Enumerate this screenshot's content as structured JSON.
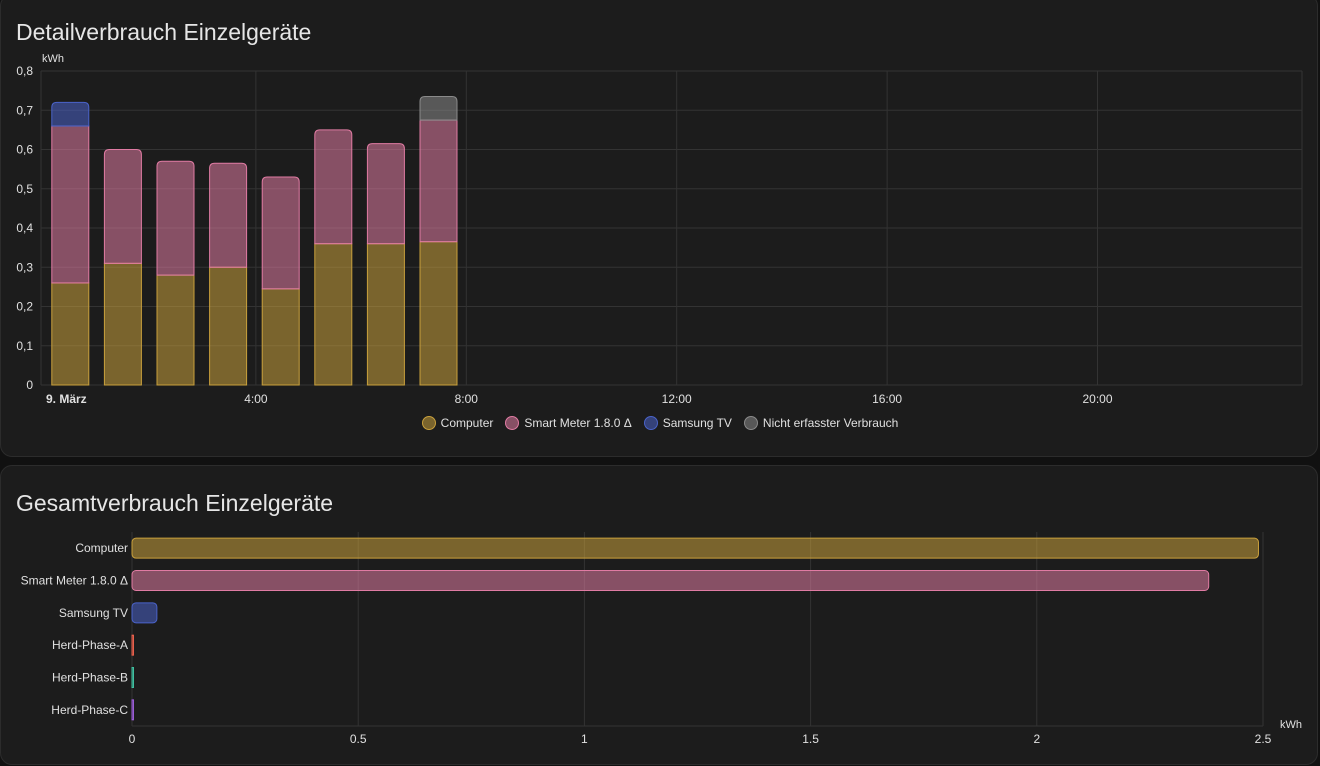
{
  "cards": [
    {
      "title": "Detailverbrauch Einzelgeräte",
      "chart_data": {
        "type": "bar",
        "stacked": true,
        "unit": "kWh",
        "x_ticks": [
          "9. März",
          "4:00",
          "8:00",
          "12:00",
          "16:00",
          "20:00"
        ],
        "x_range_hours": [
          0,
          24
        ],
        "categories_hours": [
          0,
          1,
          2,
          3,
          4,
          5,
          6,
          7
        ],
        "ylim": [
          0,
          0.8
        ],
        "y_ticks": [
          "0",
          "0,1",
          "0,2",
          "0,3",
          "0,4",
          "0,5",
          "0,6",
          "0,7",
          "0,8"
        ],
        "grid": true,
        "legend_position": "bottom-center",
        "series": [
          {
            "name": "Computer",
            "color": "#c9a03c",
            "values": [
              0.26,
              0.31,
              0.28,
              0.3,
              0.245,
              0.36,
              0.36,
              0.365
            ]
          },
          {
            "name": "Smart Meter 1.8.0 Δ",
            "color": "#e07ba3",
            "values": [
              0.4,
              0.29,
              0.29,
              0.265,
              0.285,
              0.29,
              0.255,
              0.31
            ]
          },
          {
            "name": "Samsung TV",
            "color": "#4a63c9",
            "values": [
              0.06,
              0,
              0,
              0,
              0,
              0,
              0,
              0
            ]
          },
          {
            "name": "Nicht erfasster Verbrauch",
            "color": "#8a8a8a",
            "values": [
              0,
              0,
              0,
              0,
              0,
              0,
              0,
              0.06
            ]
          }
        ]
      }
    },
    {
      "title": "Gesamtverbrauch Einzelgeräte",
      "chart_data": {
        "type": "bar",
        "orientation": "horizontal",
        "unit": "kWh",
        "xlim": [
          0,
          2.5
        ],
        "x_ticks": [
          "0",
          "0.5",
          "1",
          "1.5",
          "2",
          "2.5"
        ],
        "grid": true,
        "categories": [
          "Computer",
          "Smart Meter 1.8.0 Δ",
          "Samsung TV",
          "Herd-Phase-A",
          "Herd-Phase-B",
          "Herd-Phase-C"
        ],
        "values": [
          2.49,
          2.38,
          0.055,
          0.002,
          0.002,
          0.002
        ],
        "colors": [
          "#c9a03c",
          "#e07ba3",
          "#4a63c9",
          "#e8604c",
          "#3fbfa0",
          "#9a5cd6"
        ]
      }
    }
  ]
}
